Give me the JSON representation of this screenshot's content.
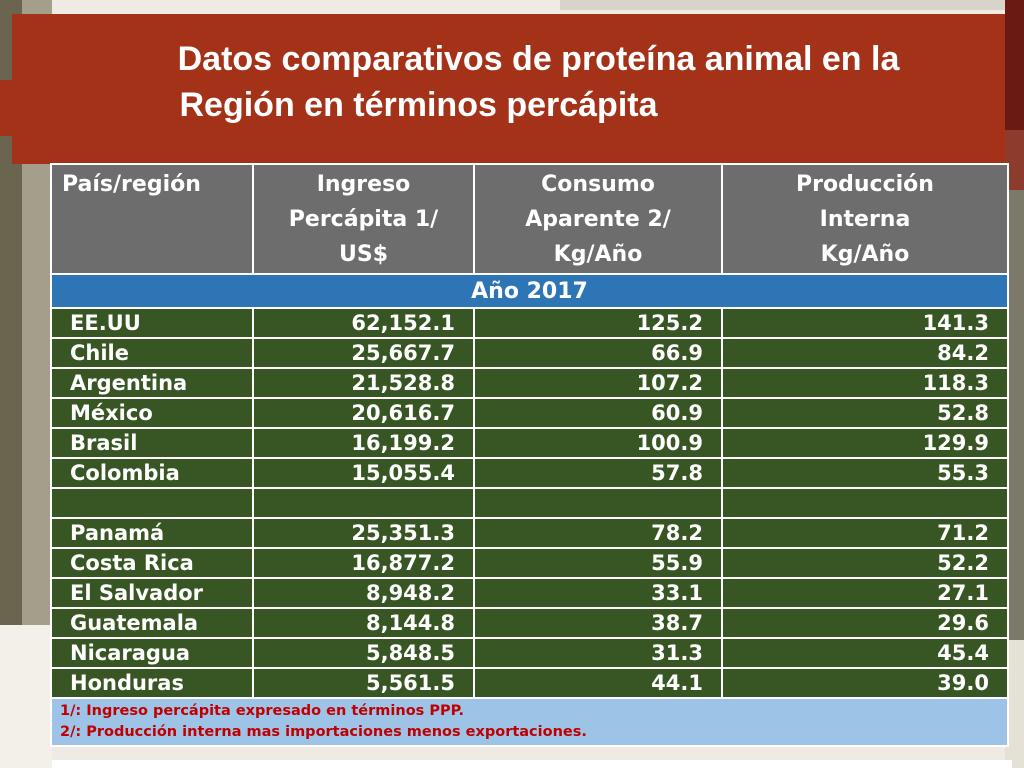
{
  "title": {
    "line1": "Datos comparativos de proteína animal en la",
    "line2": "Región en términos percápita"
  },
  "table": {
    "headers": [
      {
        "lines": [
          "País/región"
        ]
      },
      {
        "lines": [
          "Ingreso",
          "Percápita 1/",
          "US$"
        ]
      },
      {
        "lines": [
          "Consumo",
          "Aparente 2/",
          "Kg/Año"
        ]
      },
      {
        "lines": [
          "Producción",
          "Interna",
          "Kg/Año"
        ]
      }
    ],
    "year_label": "Año 2017",
    "rows": [
      [
        "EE.UU",
        "62,152.1",
        "125.2",
        "141.3"
      ],
      [
        "Chile",
        "25,667.7",
        "66.9",
        "84.2"
      ],
      [
        "Argentina",
        "21,528.8",
        "107.2",
        "118.3"
      ],
      [
        "México",
        "20,616.7",
        "60.9",
        "52.8"
      ],
      [
        "Brasil",
        "16,199.2",
        "100.9",
        "129.9"
      ],
      [
        "Colombia",
        "15,055.4",
        "57.8",
        "55.3"
      ],
      [
        "",
        "",
        "",
        ""
      ],
      [
        "Panamá",
        "25,351.3",
        "78.2",
        "71.2"
      ],
      [
        "Costa Rica",
        "16,877.2",
        "55.9",
        "52.2"
      ],
      [
        "El Salvador",
        "8,948.2",
        "33.1",
        "27.1"
      ],
      [
        "Guatemala",
        "8,144.8",
        "38.7",
        "29.6"
      ],
      [
        "Nicaragua",
        "5,848.5",
        "31.3",
        "45.4"
      ],
      [
        "Honduras",
        "5,561.5",
        "44.1",
        "39.0"
      ]
    ],
    "notes": [
      "1/: Ingreso percápita expresado en términos PPP.",
      "2/: Producción interna mas importaciones menos exportaciones."
    ]
  },
  "colors": {
    "title_bg": "#a33219",
    "header_bg": "#6d6d6d",
    "year_bg": "#2e75b6",
    "row_bg": "#375623",
    "notes_bg": "#9dc3e6",
    "notes_text": "#c00000"
  }
}
